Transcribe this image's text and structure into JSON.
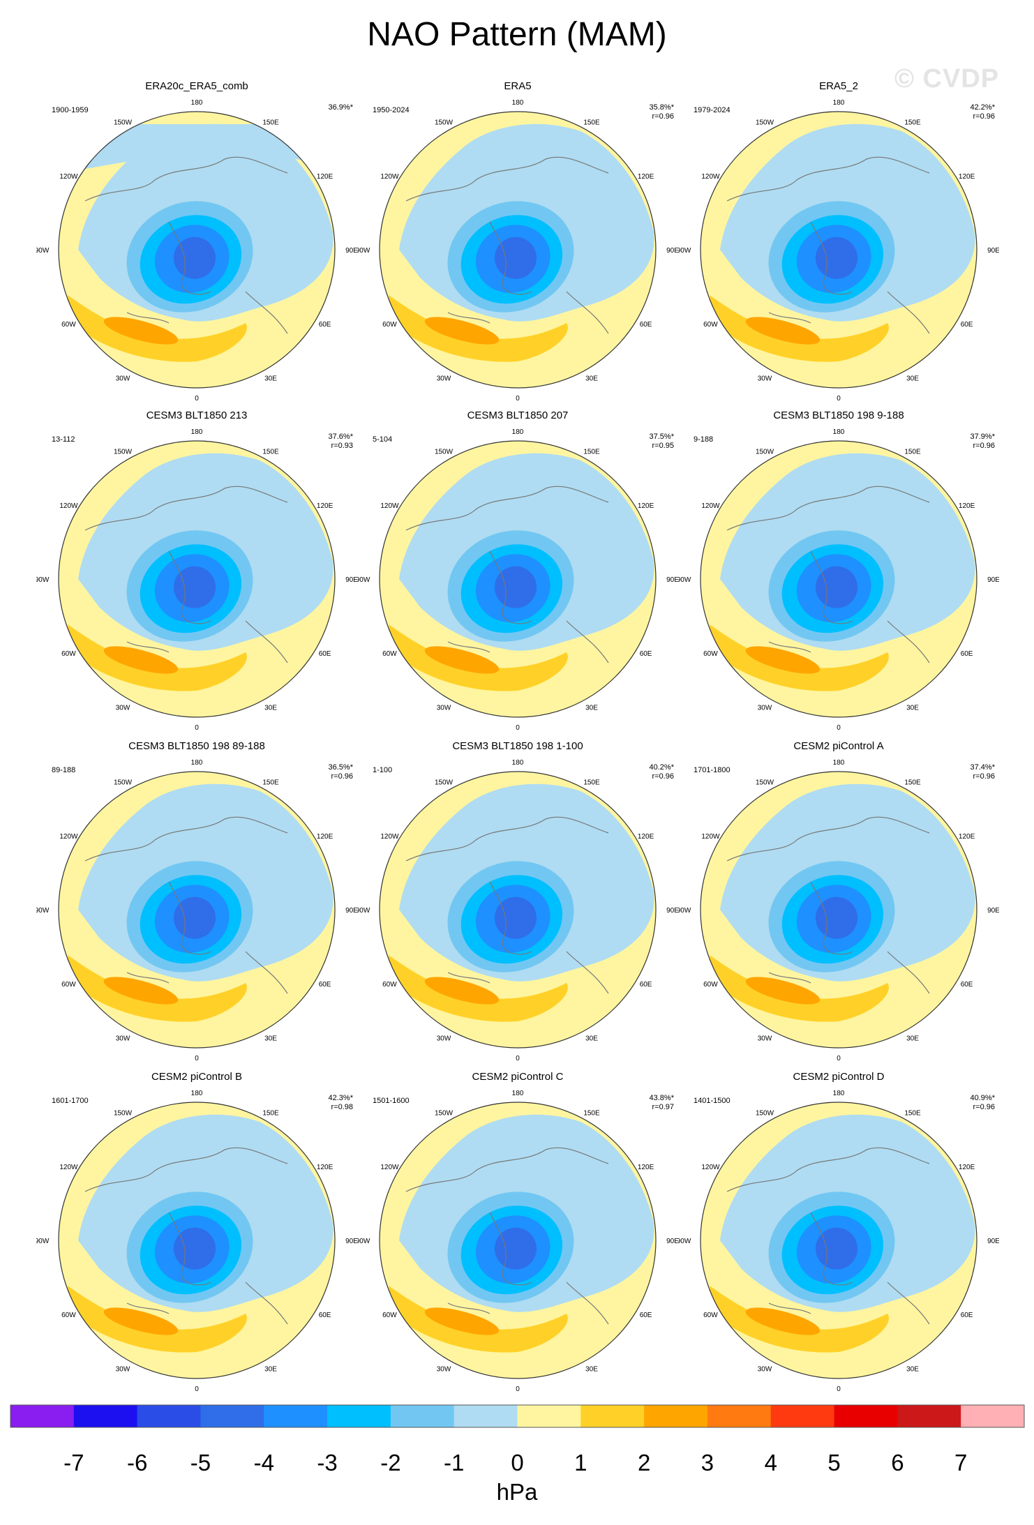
{
  "title": "NAO Pattern (MAM)",
  "watermark": "© CVDP",
  "chart_data": {
    "type": "heatmap",
    "projection": "north polar stereographic",
    "variable": "sea level pressure NAO pattern",
    "units": "hPa",
    "lon_labels": [
      "180",
      "150E",
      "120E",
      "90E",
      "60E",
      "30E",
      "0",
      "30W",
      "60W",
      "90W",
      "120W",
      "150W"
    ],
    "panels": [
      {
        "title": "ERA20c_ERA5_comb",
        "period": "1900-1959",
        "pct": "36.9%*",
        "r": ""
      },
      {
        "title": "ERA5",
        "period": "1950-2024",
        "pct": "35.8%*",
        "r": "r=0.96"
      },
      {
        "title": "ERA5_2",
        "period": "1979-2024",
        "pct": "42.2%*",
        "r": "r=0.96"
      },
      {
        "title": "CESM3 BLT1850 213",
        "period": "13-112",
        "pct": "37.6%*",
        "r": "r=0.93"
      },
      {
        "title": "CESM3 BLT1850 207",
        "period": "5-104",
        "pct": "37.5%*",
        "r": "r=0.95"
      },
      {
        "title": "CESM3 BLT1850 198 9-188",
        "period": "9-188",
        "pct": "37.9%*",
        "r": "r=0.96"
      },
      {
        "title": "CESM3 BLT1850 198 89-188",
        "period": "89-188",
        "pct": "36.5%*",
        "r": "r=0.96"
      },
      {
        "title": "CESM3 BLT1850 198 1-100",
        "period": "1-100",
        "pct": "40.2%*",
        "r": "r=0.96"
      },
      {
        "title": "CESM2 piControl A",
        "period": "1701-1800",
        "pct": "37.4%*",
        "r": "r=0.96"
      },
      {
        "title": "CESM2 piControl B",
        "period": "1601-1700",
        "pct": "42.3%*",
        "r": "r=0.98"
      },
      {
        "title": "CESM2 piControl C",
        "period": "1501-1600",
        "pct": "43.8%*",
        "r": "r=0.97"
      },
      {
        "title": "CESM2 piControl D",
        "period": "1401-1500",
        "pct": "40.9%*",
        "r": "r=0.96"
      }
    ],
    "colorbar": {
      "ticks": [
        "-7",
        "-6",
        "-5",
        "-4",
        "-3",
        "-2",
        "-1",
        "0",
        "1",
        "2",
        "3",
        "4",
        "5",
        "6",
        "7"
      ],
      "colors": [
        "#8a1df0",
        "#1c10f0",
        "#2a4de8",
        "#2f6ee8",
        "#1e90ff",
        "#00bfff",
        "#72c7f2",
        "#afdcf2",
        "#fff5a0",
        "#ffd128",
        "#ffa500",
        "#ff7a10",
        "#ff3a10",
        "#e80000",
        "#cc1818",
        "#ffb0b4"
      ],
      "label": "hPa"
    }
  }
}
